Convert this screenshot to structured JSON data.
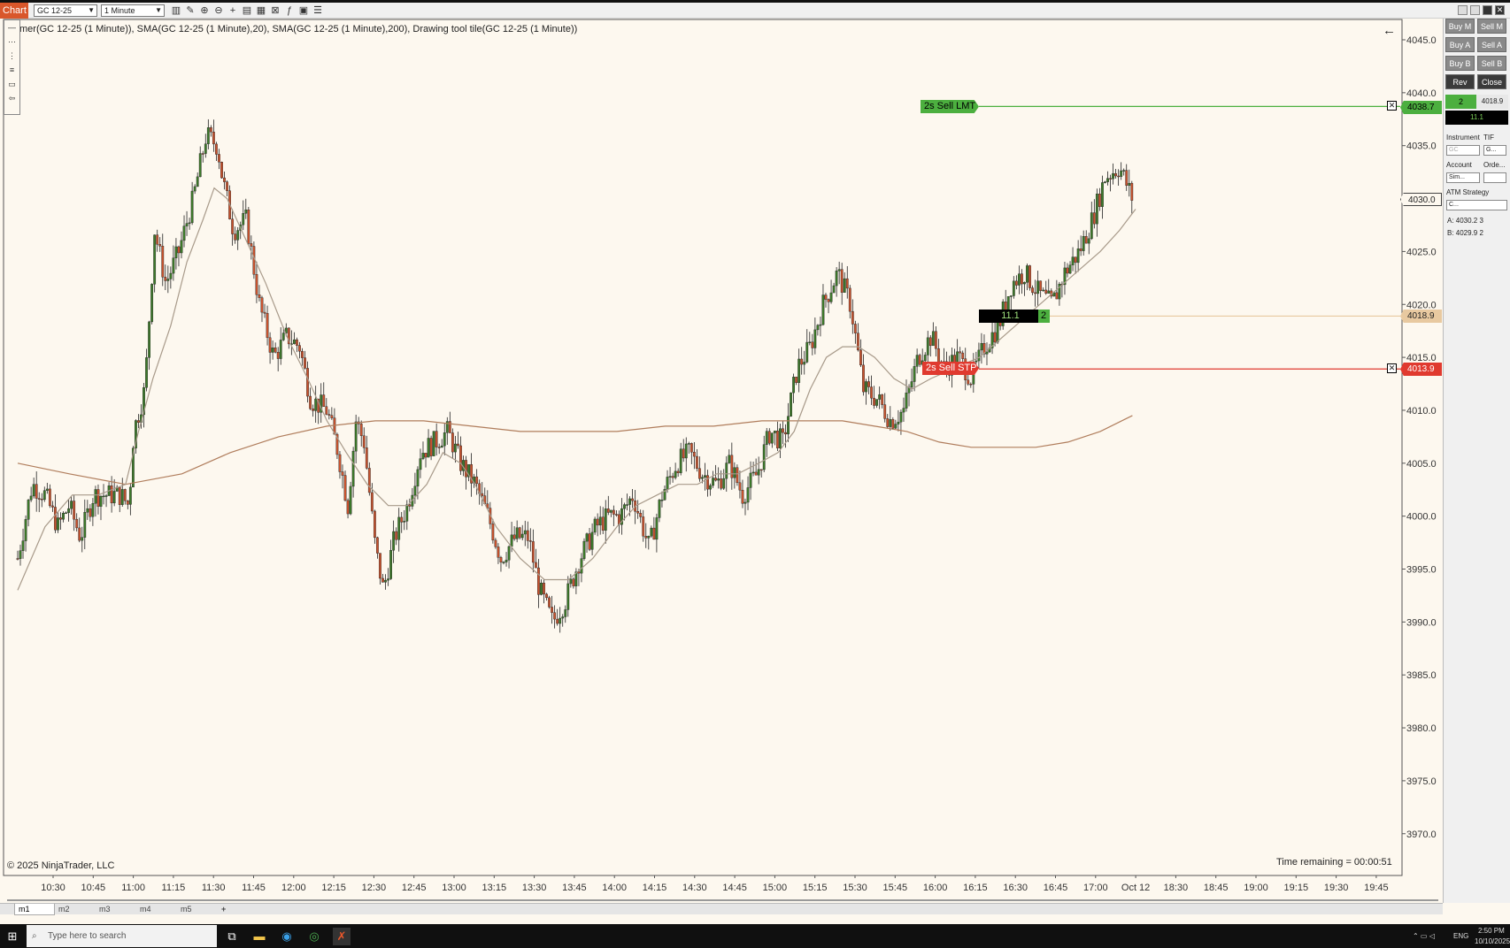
{
  "window": {
    "title": "Chart",
    "instrument": "GC 12-25",
    "period": "1 Minute"
  },
  "indicator_text": "mer(GC 12-25 (1 Minute)), SMA(GC 12-25 (1 Minute),20), SMA(GC 12-25 (1 Minute),200), Drawing tool tile(GC 12-25 (1 Minute))",
  "copyright": "© 2025 NinjaTrader, LLC",
  "time_remaining": "Time remaining = 00:00:51",
  "orders": {
    "limit": {
      "label": "2s Sell LMT",
      "price": "4038.7",
      "color": "#4caf3f"
    },
    "stop": {
      "label": "2s Sell STP",
      "price": "4013.9",
      "color": "#e03a2f"
    },
    "position": {
      "pnl": "11.1",
      "qty": "2",
      "price": "4018.9",
      "color": "#e8c9a0"
    },
    "last": {
      "price": "4030.0"
    }
  },
  "chart_data": {
    "type": "candlestick",
    "ylim": [
      3967,
      4046
    ],
    "y_ticks": [
      "4045.0",
      "4040.0",
      "4035.0",
      "4030.0",
      "4025.0",
      "4020.0",
      "4015.0",
      "4010.0",
      "4005.0",
      "4000.0",
      "3995.0",
      "3990.0",
      "3985.0",
      "3980.0",
      "3975.0",
      "3970.0"
    ],
    "x_ticks": [
      "10:30",
      "10:45",
      "11:00",
      "11:15",
      "11:30",
      "11:45",
      "12:00",
      "12:15",
      "12:30",
      "12:45",
      "13:00",
      "13:15",
      "13:30",
      "13:45",
      "14:00",
      "14:15",
      "14:30",
      "14:45",
      "15:00",
      "15:15",
      "15:30",
      "15:45",
      "16:00",
      "16:15",
      "16:30",
      "16:45",
      "17:00",
      "Oct 12",
      "18:30",
      "18:45",
      "19:00",
      "19:15",
      "19:30",
      "19:45"
    ],
    "close_path": [
      [
        10.28,
        3996
      ],
      [
        10.37,
        4003
      ],
      [
        10.45,
        4002
      ],
      [
        10.53,
        3999
      ],
      [
        10.6,
        4001
      ],
      [
        10.67,
        3998
      ],
      [
        10.75,
        4002
      ],
      [
        10.83,
        4002
      ],
      [
        10.92,
        4002
      ],
      [
        10.97,
        4001
      ],
      [
        11.0,
        4008
      ],
      [
        11.07,
        4012
      ],
      [
        11.13,
        4027
      ],
      [
        11.2,
        4022
      ],
      [
        11.28,
        4025
      ],
      [
        11.37,
        4030
      ],
      [
        11.45,
        4036
      ],
      [
        11.52,
        4035
      ],
      [
        11.55,
        4032
      ],
      [
        11.62,
        4027
      ],
      [
        11.7,
        4028
      ],
      [
        11.78,
        4020
      ],
      [
        11.87,
        4015
      ],
      [
        11.95,
        4017
      ],
      [
        12.03,
        4016
      ],
      [
        12.1,
        4011
      ],
      [
        12.2,
        4010
      ],
      [
        12.27,
        4006
      ],
      [
        12.33,
        4001
      ],
      [
        12.38,
        4009
      ],
      [
        12.43,
        4007
      ],
      [
        12.5,
        3997
      ],
      [
        12.55,
        3993
      ],
      [
        12.62,
        3998
      ],
      [
        12.7,
        4001
      ],
      [
        12.78,
        4006
      ],
      [
        12.87,
        4007
      ],
      [
        12.95,
        4008
      ],
      [
        13.03,
        4005
      ],
      [
        13.12,
        4003
      ],
      [
        13.2,
        4000
      ],
      [
        13.28,
        3996
      ],
      [
        13.37,
        3998
      ],
      [
        13.45,
        3998
      ],
      [
        13.52,
        3993
      ],
      [
        13.6,
        3990
      ],
      [
        13.68,
        3992
      ],
      [
        13.77,
        3996
      ],
      [
        13.87,
        3999
      ],
      [
        13.95,
        4000
      ],
      [
        14.02,
        4000
      ],
      [
        14.1,
        4002
      ],
      [
        14.2,
        3997
      ],
      [
        14.28,
        4002
      ],
      [
        14.37,
        4005
      ],
      [
        14.45,
        4006
      ],
      [
        14.53,
        4004
      ],
      [
        14.62,
        4003
      ],
      [
        14.7,
        4005
      ],
      [
        14.78,
        4002
      ],
      [
        14.87,
        4004
      ],
      [
        14.95,
        4008
      ],
      [
        15.03,
        4007
      ],
      [
        15.12,
        4014
      ],
      [
        15.2,
        4016
      ],
      [
        15.28,
        4020
      ],
      [
        15.37,
        4023
      ],
      [
        15.45,
        4020
      ],
      [
        15.53,
        4012
      ],
      [
        15.62,
        4011
      ],
      [
        15.7,
        4009
      ],
      [
        15.78,
        4010
      ],
      [
        15.87,
        4015
      ],
      [
        15.95,
        4017
      ],
      [
        16.03,
        4014
      ],
      [
        16.12,
        4015
      ],
      [
        16.2,
        4013
      ],
      [
        16.28,
        4016
      ],
      [
        16.37,
        4018
      ],
      [
        16.45,
        4022
      ],
      [
        16.53,
        4023
      ],
      [
        16.62,
        4021
      ],
      [
        16.7,
        4020
      ],
      [
        16.78,
        4023
      ],
      [
        16.87,
        4025
      ],
      [
        16.95,
        4028
      ],
      [
        17.03,
        4032
      ],
      [
        17.12,
        4033
      ],
      [
        17.2,
        4030
      ]
    ],
    "sma20": [
      [
        10.28,
        3993
      ],
      [
        10.45,
        3999
      ],
      [
        10.62,
        4002
      ],
      [
        10.78,
        4002
      ],
      [
        10.95,
        4003
      ],
      [
        11.03,
        4008
      ],
      [
        11.12,
        4013
      ],
      [
        11.23,
        4018
      ],
      [
        11.33,
        4024
      ],
      [
        11.43,
        4028
      ],
      [
        11.5,
        4031
      ],
      [
        11.58,
        4030
      ],
      [
        11.7,
        4026
      ],
      [
        11.82,
        4022
      ],
      [
        11.95,
        4017
      ],
      [
        12.08,
        4013
      ],
      [
        12.2,
        4009
      ],
      [
        12.32,
        4006
      ],
      [
        12.45,
        4003
      ],
      [
        12.58,
        4001
      ],
      [
        12.7,
        4001
      ],
      [
        12.82,
        4003
      ],
      [
        12.92,
        4006
      ],
      [
        13.03,
        4005
      ],
      [
        13.12,
        4003
      ],
      [
        13.25,
        3999
      ],
      [
        13.4,
        3996
      ],
      [
        13.55,
        3994
      ],
      [
        13.7,
        3994
      ],
      [
        13.85,
        3996
      ],
      [
        14.0,
        3999
      ],
      [
        14.12,
        4001
      ],
      [
        14.25,
        4002
      ],
      [
        14.38,
        4003
      ],
      [
        14.5,
        4003
      ],
      [
        14.62,
        4004
      ],
      [
        14.75,
        4004
      ],
      [
        14.88,
        4005
      ],
      [
        15.0,
        4006
      ],
      [
        15.1,
        4008
      ],
      [
        15.2,
        4012
      ],
      [
        15.3,
        4015
      ],
      [
        15.4,
        4016
      ],
      [
        15.5,
        4016
      ],
      [
        15.6,
        4015
      ],
      [
        15.72,
        4013
      ],
      [
        15.83,
        4012
      ],
      [
        15.95,
        4013
      ],
      [
        16.1,
        4014
      ],
      [
        16.25,
        4015
      ],
      [
        16.4,
        4017
      ],
      [
        16.55,
        4019
      ],
      [
        16.7,
        4021
      ],
      [
        16.85,
        4023
      ],
      [
        17.0,
        4025
      ],
      [
        17.12,
        4027
      ],
      [
        17.22,
        4029
      ]
    ],
    "sma200": [
      [
        10.28,
        4005
      ],
      [
        10.6,
        4004
      ],
      [
        10.95,
        4003
      ],
      [
        11.3,
        4004
      ],
      [
        11.6,
        4006
      ],
      [
        11.9,
        4007.5
      ],
      [
        12.2,
        4008.5
      ],
      [
        12.5,
        4009
      ],
      [
        12.8,
        4009
      ],
      [
        13.1,
        4008.5
      ],
      [
        13.4,
        4008
      ],
      [
        13.7,
        4008
      ],
      [
        14.0,
        4008
      ],
      [
        14.3,
        4008.5
      ],
      [
        14.6,
        4008.5
      ],
      [
        14.9,
        4009
      ],
      [
        15.2,
        4009
      ],
      [
        15.4,
        4009
      ],
      [
        15.6,
        4008.5
      ],
      [
        15.8,
        4008
      ],
      [
        16.0,
        4007
      ],
      [
        16.2,
        4006.5
      ],
      [
        16.4,
        4006.5
      ],
      [
        16.6,
        4006.5
      ],
      [
        16.8,
        4007
      ],
      [
        17.0,
        4008
      ],
      [
        17.2,
        4009.5
      ]
    ],
    "extremes": {
      "high": 4038.5,
      "low": 3989
    }
  },
  "tabs": [
    "m1",
    "m2",
    "m3",
    "m4",
    "m5",
    "+"
  ],
  "panel": {
    "buttons": [
      "Buy M",
      "Sell M",
      "Buy A",
      "Sell A",
      "Buy B",
      "Sell B",
      "Rev",
      "Close"
    ],
    "qty": "2",
    "price": "4018.9",
    "pnl": "11.1",
    "labels": {
      "instrument": "Instrument",
      "tif": "TIF",
      "account": "Account",
      "order": "Orde...",
      "atm": "ATM Strategy"
    },
    "instrument_value": "GC",
    "tif_value": "G...",
    "account_value": "Sim...",
    "atm_value": "C...",
    "ask": "A:  4030.2   3",
    "bid": "B:  4029.9   2"
  },
  "taskbar": {
    "search_placeholder": "Type here to search",
    "lang": "ENG",
    "time": "2:50 PM",
    "date": "10/10/2025"
  },
  "colors": {
    "background": "#fdf8ef",
    "up_candle": "#3d7a2a",
    "down_candle": "#c9532e",
    "sma20": "#a89a8a",
    "sma200": "#b07d5c"
  }
}
